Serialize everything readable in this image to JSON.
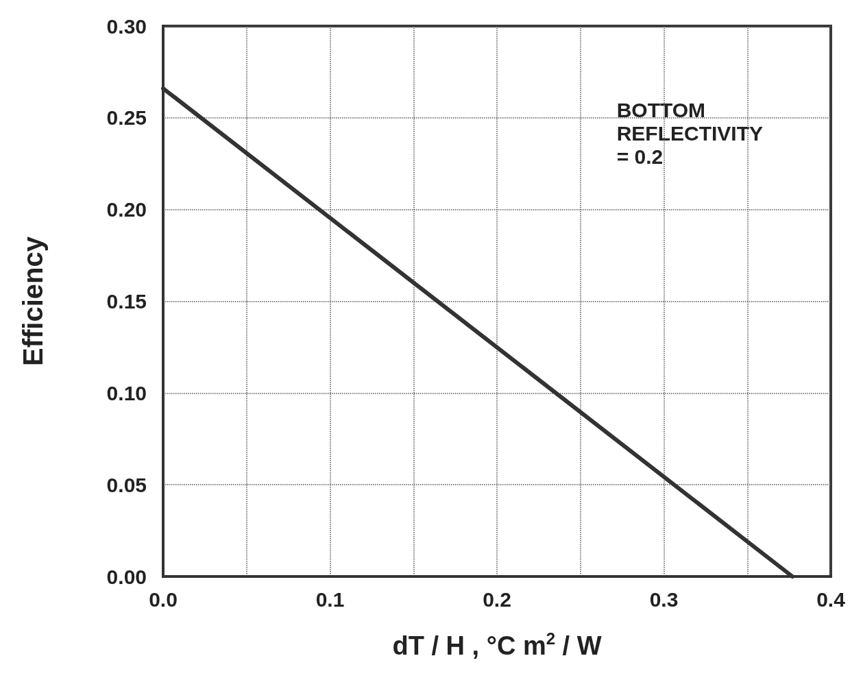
{
  "chart_data": {
    "type": "line",
    "xlabel": "dT / H , °C m$^{2}$ / W",
    "ylabel": "Efficiency",
    "annotations": [
      "BOTTOM\nREFLECTIVITY\n= 0.2"
    ],
    "x": [
      0,
      0.377
    ],
    "series": [
      {
        "color": "#333333",
        "values": [
          0.266,
          0
        ]
      }
    ],
    "xlim": [
      0,
      0.4
    ],
    "xticks": [
      {
        "value": 0,
        "label": "0.0"
      },
      {
        "value": 0.05,
        "label": null
      },
      0.1,
      {
        "value": 0.15,
        "label": null
      },
      0.2,
      {
        "value": 0.25,
        "label": null
      },
      0.3,
      {
        "value": 0.35,
        "label": null
      },
      0.4
    ],
    "ylim": [
      0,
      0.3
    ],
    "yticks": [
      {
        "value": 0,
        "label": "0.00"
      },
      0.05,
      {
        "value": 0.1,
        "label": "0.10"
      },
      0.15,
      {
        "value": 0.2,
        "label": "0.20"
      },
      0.25,
      {
        "value": 0.3,
        "label": "0.30"
      }
    ],
    "grid": true,
    "marker": "none",
    "line_style": "solid"
  }
}
